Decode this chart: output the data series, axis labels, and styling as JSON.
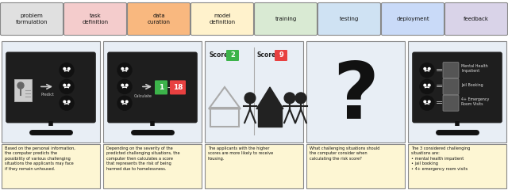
{
  "pipeline_labels": [
    "problem\nformulation",
    "task\ndefinition",
    "data\ncuration",
    "model\ndefinition",
    "training",
    "testing",
    "deployment",
    "feedback"
  ],
  "pipeline_colors": [
    "#e0e0e0",
    "#f4cccc",
    "#f9b87f",
    "#fff2cc",
    "#d9ead3",
    "#cfe2f3",
    "#c9daf8",
    "#d9d3e8"
  ],
  "caption_texts": [
    "Based on the personal information,\nthe computer predicts the\npossibility of various challenging\nsituations the applicants may face\nif they remain unhoused.",
    "Depending on the severity of the\npredicted challenging situations, the\ncomputer then calculates a score\nthat represents the risk of being\nharmed due to homelessness.",
    "The applicants with the higher\nscores are more likely to receive\nhousing.",
    "What challenging situations should\nthe computer consider when\ncalculating the risk score?",
    "The 3 considered challenging\nsituations are:\n• mental health impatient\n• jail booking\n• 4+ emergency room visits"
  ],
  "bg_color": "#ffffff",
  "panel_bg": "#e8eef5",
  "caption_bg": "#fdf6d3",
  "border_color": "#888888",
  "score2_color": "#3cb34a",
  "score9_color": "#e84040",
  "score1_color": "#3cb34a",
  "score18_color": "#e84040"
}
